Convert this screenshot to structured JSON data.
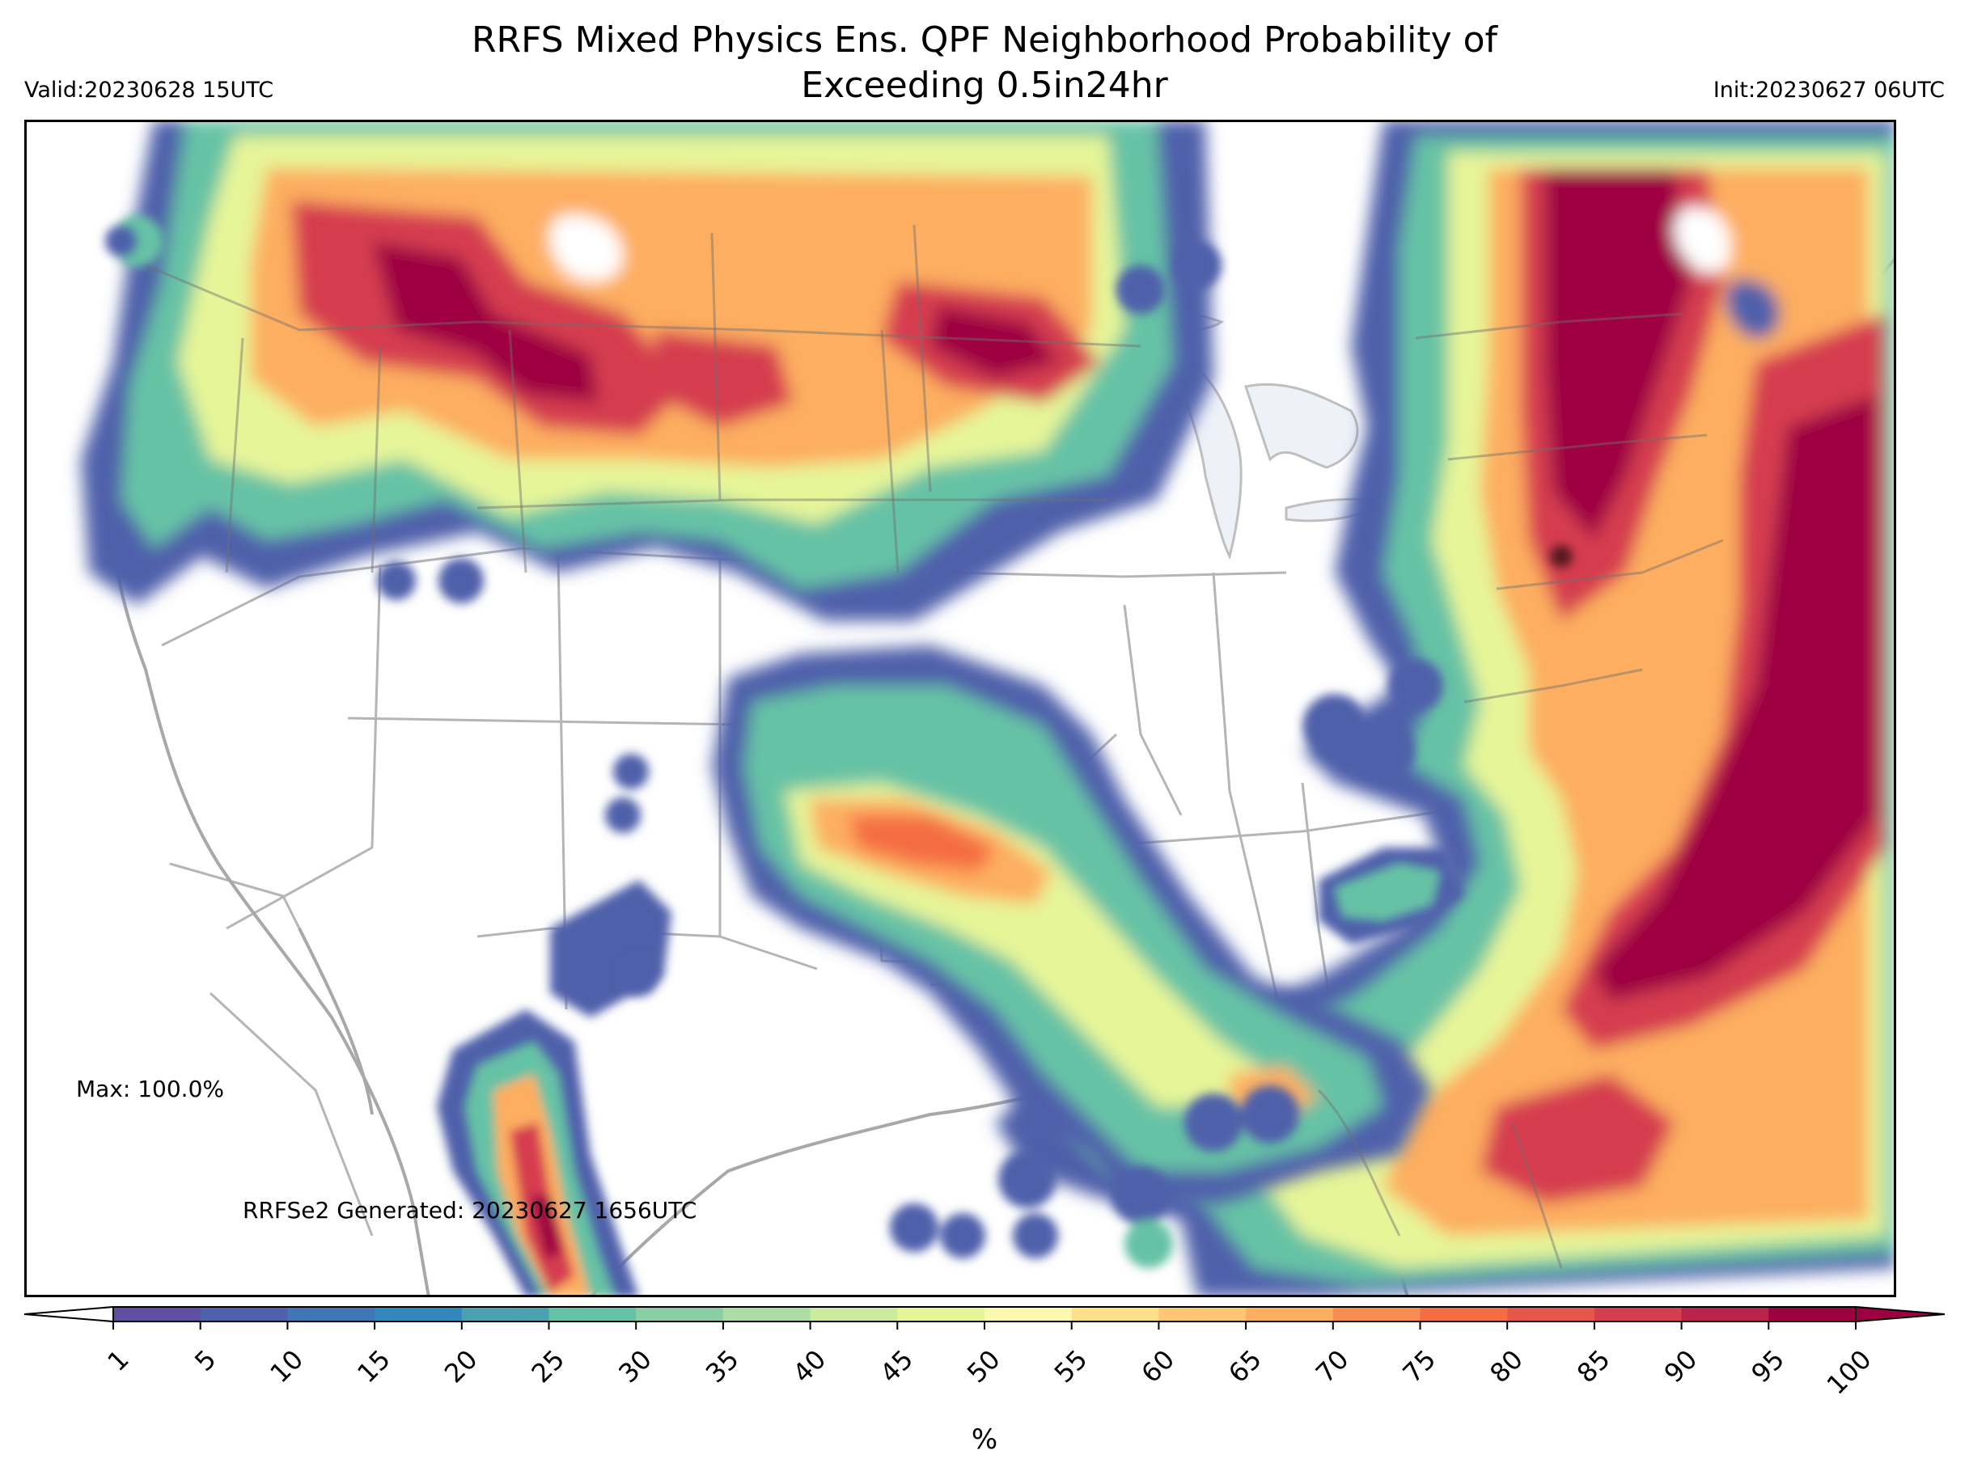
{
  "figure": {
    "title_line1": "RRFS Mixed Physics Ens. QPF Neighborhood Probability of",
    "title_line2": "Exceeding 0.5in24hr",
    "valid": "Valid:20230628 15UTC",
    "init": "Init:20230627 06UTC",
    "max": "Max: 100.0%",
    "generated": "RRFSe2 Generated: 20230627 1656UTC",
    "unit": "%"
  },
  "colorbar": {
    "ticks": [
      "1",
      "5",
      "10",
      "15",
      "20",
      "25",
      "30",
      "35",
      "40",
      "45",
      "50",
      "55",
      "60",
      "65",
      "70",
      "75",
      "80",
      "85",
      "90",
      "95",
      "100"
    ],
    "colors": [
      "#5e4fa2",
      "#4f61aa",
      "#3f76b4",
      "#3288bd",
      "#4ba0b1",
      "#66c2a5",
      "#88d0a4",
      "#abdda4",
      "#cdeb9d",
      "#e6f598",
      "#fbf8b0",
      "#fee08b",
      "#fdc574",
      "#fdae61",
      "#f88d52",
      "#f46d43",
      "#e55749",
      "#d53e4f",
      "#bb2249",
      "#9e0142"
    ],
    "under_color": "#ffffff",
    "over_color": "#9e0142"
  }
}
